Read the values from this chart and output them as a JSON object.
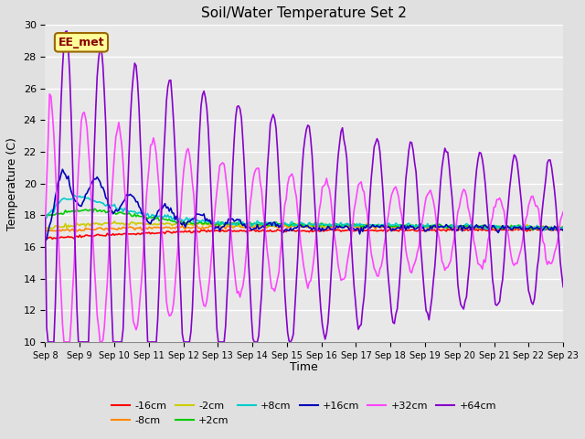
{
  "title": "Soil/Water Temperature Set 2",
  "xlabel": "Time",
  "ylabel": "Temperature (C)",
  "ylim": [
    10,
    30
  ],
  "background_color": "#e0e0e0",
  "plot_bg": "#e8e8e8",
  "annotation_text": "EE_met",
  "annotation_bg": "#ffff99",
  "annotation_border": "#996600",
  "annotation_text_color": "#880000",
  "colors": {
    "-16cm": "#ff0000",
    "-8cm": "#ff8800",
    "-2cm": "#cccc00",
    "+2cm": "#00cc00",
    "+8cm": "#00cccc",
    "+16cm": "#0000bb",
    "+32cm": "#ff44ff",
    "+64cm": "#8800cc"
  },
  "x_tick_labels": [
    "Sep 8",
    "Sep 9",
    "Sep 10",
    "Sep 11",
    "Sep 12",
    "Sep 13",
    "Sep 14",
    "Sep 15",
    "Sep 16",
    "Sep 17",
    "Sep 18",
    "Sep 19",
    "Sep 20",
    "Sep 21",
    "Sep 22",
    "Sep 23"
  ]
}
